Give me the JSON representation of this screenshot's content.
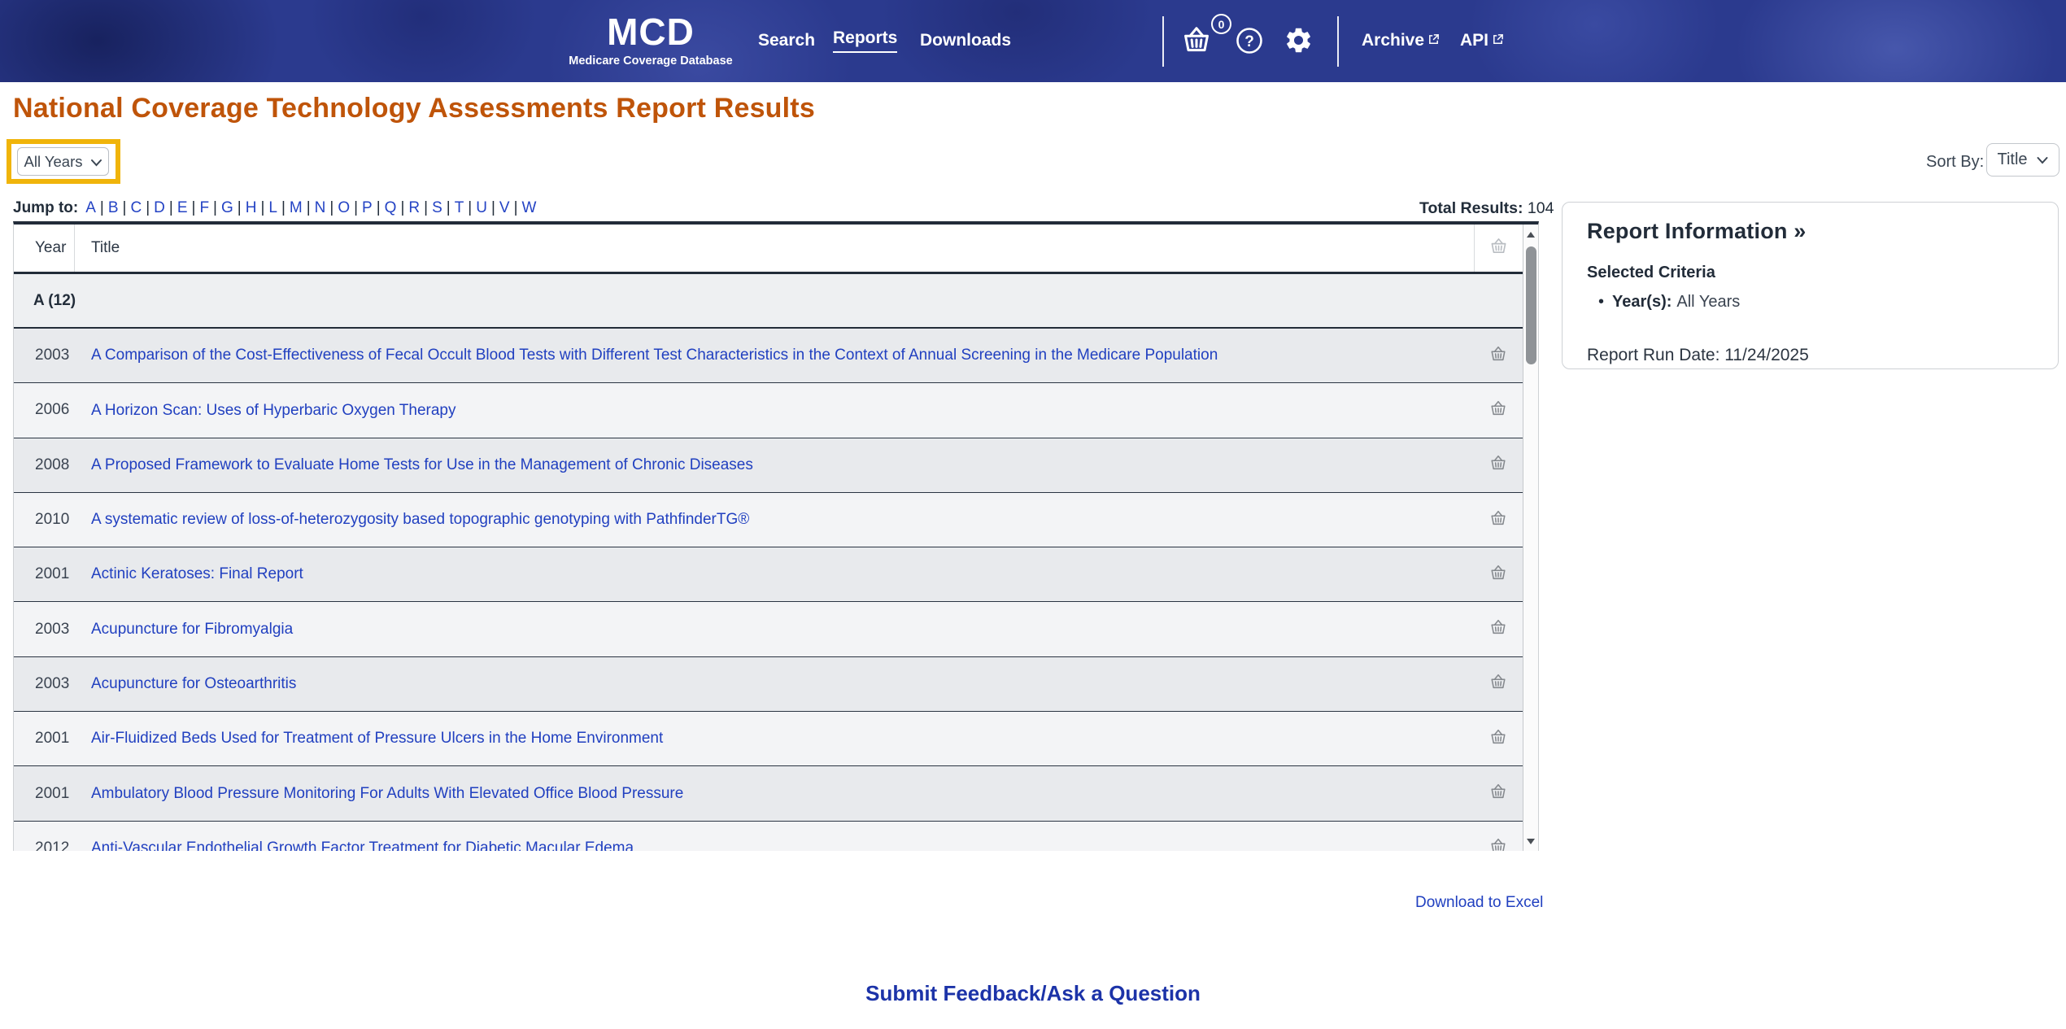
{
  "header": {
    "logo": {
      "title": "MCD",
      "tagline": "Medicare Coverage Database"
    },
    "nav": [
      {
        "label": "Search"
      },
      {
        "label": "Reports"
      },
      {
        "label": "Downloads"
      }
    ],
    "basket_count": "0",
    "archive_label": "Archive",
    "api_label": "API"
  },
  "page": {
    "title": "National Coverage Technology Assessments Report Results"
  },
  "controls": {
    "year_filter_value": "All Years",
    "sort_by_label": "Sort By:",
    "sort_value": "Title"
  },
  "jump_to": {
    "label": "Jump to:",
    "letters": [
      "A",
      "B",
      "C",
      "D",
      "E",
      "F",
      "G",
      "H",
      "L",
      "M",
      "N",
      "O",
      "P",
      "Q",
      "R",
      "S",
      "T",
      "U",
      "V",
      "W"
    ]
  },
  "results": {
    "total_label": "Total Results:",
    "total_value": "104"
  },
  "table": {
    "columns": {
      "year": "Year",
      "title": "Title"
    },
    "section_header": "A (12)",
    "rows": [
      {
        "year": "2003",
        "title": "A Comparison of the Cost-Effectiveness of Fecal Occult Blood Tests with Different Test Characteristics in the Context of Annual Screening in the Medicare Population"
      },
      {
        "year": "2006",
        "title": "A Horizon Scan: Uses of Hyperbaric Oxygen Therapy"
      },
      {
        "year": "2008",
        "title": "A Proposed Framework to Evaluate Home Tests for Use in the Management of Chronic Diseases"
      },
      {
        "year": "2010",
        "title": "A systematic review of loss-of-heterozygosity based topographic genotyping with PathfinderTG®"
      },
      {
        "year": "2001",
        "title": "Actinic Keratoses: Final Report"
      },
      {
        "year": "2003",
        "title": "Acupuncture for Fibromyalgia"
      },
      {
        "year": "2003",
        "title": "Acupuncture for Osteoarthritis"
      },
      {
        "year": "2001",
        "title": "Air-Fluidized Beds Used for Treatment of Pressure Ulcers in the Home Environment"
      },
      {
        "year": "2001",
        "title": "Ambulatory Blood Pressure Monitoring For Adults With Elevated Office Blood Pressure"
      },
      {
        "year": "2012",
        "title": "Anti-Vascular Endothelial Growth Factor Treatment for Diabetic Macular Edema"
      }
    ]
  },
  "report_info": {
    "heading": "Report Information »",
    "criteria_heading": "Selected Criteria",
    "criteria_items": [
      {
        "label": "Year(s):",
        "value": "All Years"
      }
    ],
    "run_date": "Report Run Date: 11/24/2025"
  },
  "links": {
    "download": "Download to Excel",
    "feedback": "Submit Feedback/Ask a Question"
  },
  "colors": {
    "header_navy": "#2b3a8e",
    "title_orange": "#bf5409",
    "link_blue": "#2140c0",
    "highlight_yellow": "#f0b40a",
    "dark_line": "#222c39"
  }
}
